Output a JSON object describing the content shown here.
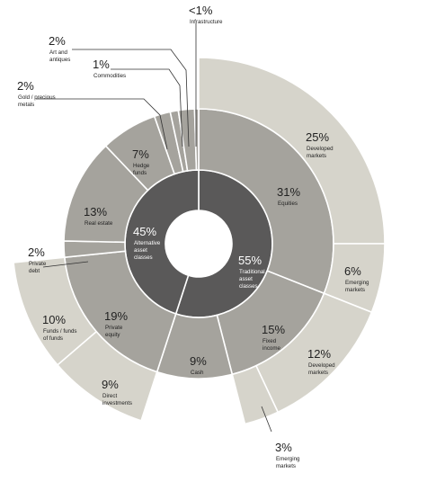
{
  "chart_data": {
    "type": "sunburst",
    "title": "",
    "colors": {
      "inner": "#5a5959",
      "middle": "#a5a39d",
      "outer": "#d6d4cb",
      "text_dark": "#222222",
      "text_light": "#ffffff",
      "separator": "#ffffff"
    },
    "rings": [
      {
        "level": "inner",
        "segments": [
          {
            "id": "traditional",
            "pct_label": "55%",
            "value": 55,
            "name_lines": [
              "Traditional",
              "asset",
              "classes"
            ]
          },
          {
            "id": "alternative",
            "pct_label": "45%",
            "value": 45,
            "name_lines": [
              "Alternative",
              "asset",
              "classes"
            ]
          }
        ]
      },
      {
        "level": "middle",
        "segments": [
          {
            "id": "equities",
            "parent": "traditional",
            "pct_label": "31%",
            "value": 31,
            "name_lines": [
              "Equities"
            ]
          },
          {
            "id": "fixed_income",
            "parent": "traditional",
            "pct_label": "15%",
            "value": 15,
            "name_lines": [
              "Fixed",
              "income"
            ]
          },
          {
            "id": "cash",
            "parent": "traditional",
            "pct_label": "9%",
            "value": 9,
            "name_lines": [
              "Cash"
            ]
          },
          {
            "id": "private_equity",
            "parent": "alternative",
            "pct_label": "19%",
            "value": 19,
            "name_lines": [
              "Private",
              "equity"
            ]
          },
          {
            "id": "private_debt",
            "parent": "alternative",
            "pct_label": "2%",
            "value": 2,
            "name_lines": [
              "Private",
              "debt"
            ]
          },
          {
            "id": "real_estate",
            "parent": "alternative",
            "pct_label": "13%",
            "value": 13,
            "name_lines": [
              "Real estate"
            ]
          },
          {
            "id": "hedge_funds",
            "parent": "alternative",
            "pct_label": "7%",
            "value": 7,
            "name_lines": [
              "Hedge",
              "funds"
            ]
          },
          {
            "id": "gold",
            "parent": "alternative",
            "pct_label": "2%",
            "value": 2,
            "name_lines": [
              "Gold / precious",
              "metals"
            ]
          },
          {
            "id": "commodities",
            "parent": "alternative",
            "pct_label": "1%",
            "value": 1,
            "name_lines": [
              "Commodities"
            ]
          },
          {
            "id": "art",
            "parent": "alternative",
            "pct_label": "2%",
            "value": 2,
            "name_lines": [
              "Art and",
              "antiques"
            ]
          },
          {
            "id": "infrastructure",
            "parent": "alternative",
            "pct_label": "<1%",
            "value": 0.5,
            "name_lines": [
              "Infrastructure"
            ]
          }
        ]
      },
      {
        "level": "outer",
        "segments": [
          {
            "id": "eq_developed",
            "parent": "equities",
            "pct_label": "25%",
            "value": 25,
            "name_lines": [
              "Developed",
              "markets"
            ]
          },
          {
            "id": "eq_emerging",
            "parent": "equities",
            "pct_label": "6%",
            "value": 6,
            "name_lines": [
              "Emerging",
              "markets"
            ]
          },
          {
            "id": "fi_developed",
            "parent": "fixed_income",
            "pct_label": "12%",
            "value": 12,
            "name_lines": [
              "Developed",
              "markets"
            ]
          },
          {
            "id": "fi_emerging",
            "parent": "fixed_income",
            "pct_label": "3%",
            "value": 3,
            "name_lines": [
              "Emerging",
              "markets"
            ]
          },
          {
            "id": "pe_direct",
            "parent": "private_equity",
            "pct_label": "9%",
            "value": 9,
            "name_lines": [
              "Direct",
              "investments"
            ]
          },
          {
            "id": "pe_funds",
            "parent": "private_equity",
            "pct_label": "10%",
            "value": 10,
            "name_lines": [
              "Funds / funds",
              "of funds"
            ]
          }
        ]
      }
    ]
  }
}
